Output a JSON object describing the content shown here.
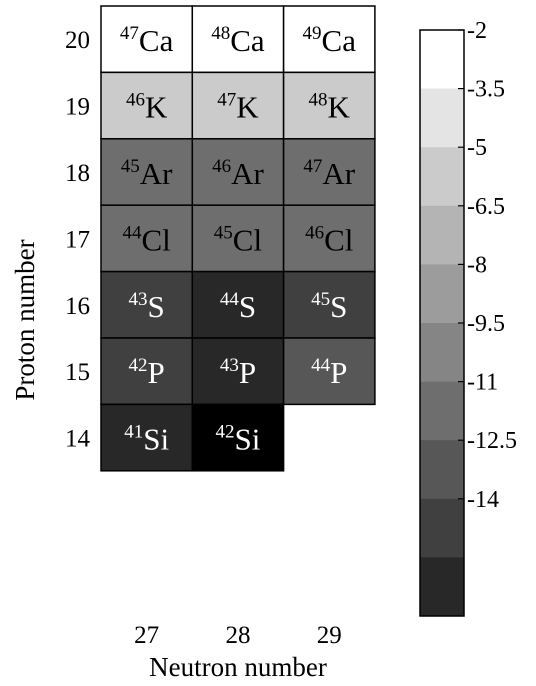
{
  "chart_data": {
    "type": "heatmap",
    "xlabel": "Neutron number",
    "ylabel": "Proton number",
    "x_ticks": [
      "27",
      "28",
      "29"
    ],
    "y_ticks": [
      "20",
      "19",
      "18",
      "17",
      "16",
      "15",
      "14"
    ],
    "cells": [
      {
        "row": "20",
        "col": "27",
        "mass": "47",
        "symbol": "Ca",
        "value": -2.5
      },
      {
        "row": "20",
        "col": "28",
        "mass": "48",
        "symbol": "Ca",
        "value": -2.2
      },
      {
        "row": "20",
        "col": "29",
        "mass": "49",
        "symbol": "Ca",
        "value": -2.4
      },
      {
        "row": "19",
        "col": "27",
        "mass": "46",
        "symbol": "K",
        "value": -5.3
      },
      {
        "row": "19",
        "col": "28",
        "mass": "47",
        "symbol": "K",
        "value": -5.3
      },
      {
        "row": "19",
        "col": "29",
        "mass": "48",
        "symbol": "K",
        "value": -5.3
      },
      {
        "row": "18",
        "col": "27",
        "mass": "45",
        "symbol": "Ar",
        "value": -10.3
      },
      {
        "row": "18",
        "col": "28",
        "mass": "46",
        "symbol": "Ar",
        "value": -10.3
      },
      {
        "row": "18",
        "col": "29",
        "mass": "47",
        "symbol": "Ar",
        "value": -10.3
      },
      {
        "row": "17",
        "col": "27",
        "mass": "44",
        "symbol": "Cl",
        "value": -10.5
      },
      {
        "row": "17",
        "col": "28",
        "mass": "45",
        "symbol": "Cl",
        "value": -10.5
      },
      {
        "row": "17",
        "col": "29",
        "mass": "46",
        "symbol": "Cl",
        "value": -10.5
      },
      {
        "row": "16",
        "col": "27",
        "mass": "43",
        "symbol": "S",
        "value": -13.0
      },
      {
        "row": "16",
        "col": "28",
        "mass": "44",
        "symbol": "S",
        "value": -14.5
      },
      {
        "row": "16",
        "col": "29",
        "mass": "45",
        "symbol": "S",
        "value": -13.0
      },
      {
        "row": "15",
        "col": "27",
        "mass": "42",
        "symbol": "P",
        "value": -13.3
      },
      {
        "row": "15",
        "col": "28",
        "mass": "43",
        "symbol": "P",
        "value": -14.6
      },
      {
        "row": "15",
        "col": "29",
        "mass": "44",
        "symbol": "P",
        "value": -12.0
      },
      {
        "row": "14",
        "col": "27",
        "mass": "41",
        "symbol": "Si",
        "value": -15.5
      },
      {
        "row": "14",
        "col": "28",
        "mass": "42",
        "symbol": "Si",
        "value": -16.5
      }
    ],
    "colorbar": {
      "ticks": [
        "-2",
        "-3.5",
        "-5",
        "-6.5",
        "-8",
        "-9.5",
        "-11",
        "-12.5",
        "-14"
      ],
      "range": [
        -15.5,
        -2
      ],
      "colors": [
        "#ffffff",
        "#e4e4e4",
        "#cbcbcb",
        "#b4b4b4",
        "#9c9c9c",
        "#858585",
        "#6e6e6e",
        "#575757",
        "#404040",
        "#282828"
      ]
    }
  }
}
